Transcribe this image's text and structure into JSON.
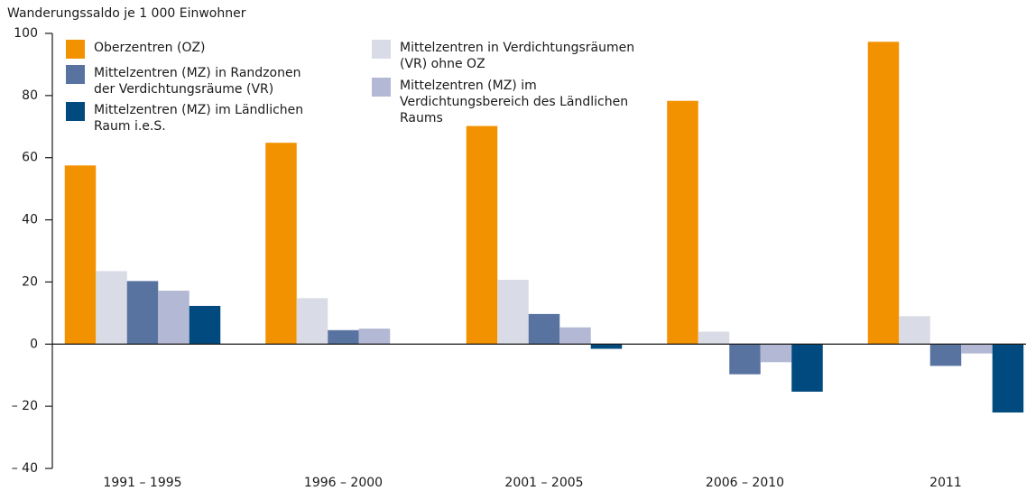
{
  "chart_data": {
    "type": "bar",
    "y_label": "Wanderungssaldo je 1 000 Einwohner",
    "categories": [
      "1991 – 1995",
      "1996 – 2000",
      "2001 – 2005",
      "2006 – 2010",
      "2011"
    ],
    "series": [
      {
        "name": "Oberzentren (OZ)",
        "color": "#f39200",
        "values": [
          57.5,
          64.8,
          70.2,
          78.3,
          97.3
        ]
      },
      {
        "name": "Mittelzentren in Verdichtungsräumen (VR) ohne OZ",
        "color": "#d9dbe6",
        "values": [
          23.5,
          14.8,
          20.7,
          4,
          9
        ]
      },
      {
        "name": "Mittelzentren (MZ) in Randzonen der Verdichtungsräume (VR)",
        "color": "#5873a0",
        "values": [
          20.3,
          4.5,
          9.7,
          -9.7,
          -7
        ]
      },
      {
        "name": "Mittelzentren (MZ) im Verdichtungsbereich des Ländlichen Raums",
        "color": "#b3b8d4",
        "values": [
          17.2,
          5,
          5.4,
          -5.8,
          -3
        ]
      },
      {
        "name": "Mittelzentren (MZ) im Ländlichen Raum i.e.S.",
        "color": "#004a7f",
        "values": [
          12.3,
          0,
          -1.5,
          -15.3,
          -22
        ]
      }
    ],
    "ylim": [
      -40,
      100
    ],
    "yticks": [
      {
        "value": -40,
        "label": "– 40"
      },
      {
        "value": -20,
        "label": "– 20"
      },
      0,
      20,
      40,
      60,
      80,
      100
    ]
  }
}
